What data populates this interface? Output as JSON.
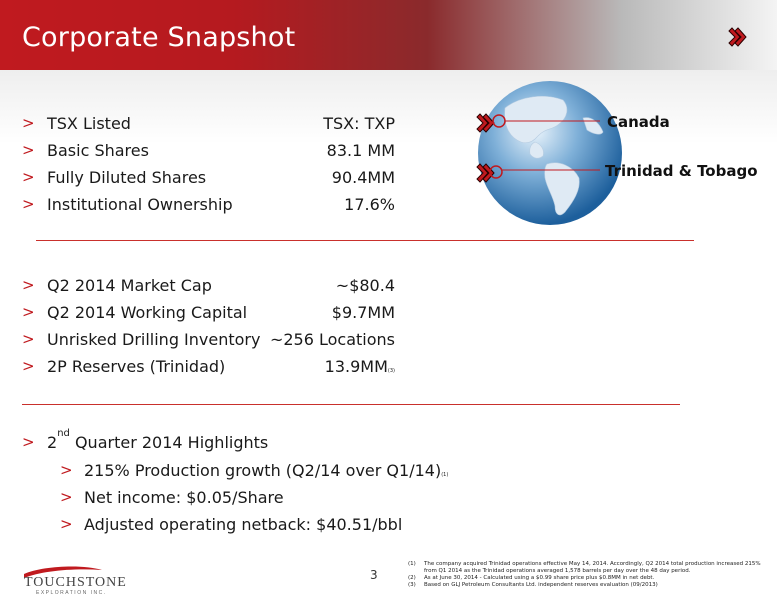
{
  "header": {
    "title": "Corporate Snapshot"
  },
  "group1": [
    {
      "label": "TSX Listed",
      "value": "TSX: TXP"
    },
    {
      "label": "Basic Shares",
      "value": "83.1 MM"
    },
    {
      "label": "Fully Diluted Shares",
      "value": "90.4MM"
    },
    {
      "label": "Institutional Ownership",
      "value": "17.6%"
    }
  ],
  "group2": [
    {
      "label": "Q2 2014 Market Cap",
      "value": "~$80.4"
    },
    {
      "label": "Q2 2014 Working Capital",
      "value": "$9.7MM"
    },
    {
      "label": "Unrisked Drilling Inventory",
      "value": "~256 Locations"
    },
    {
      "label": "2P Reserves (Trinidad)",
      "value": "13.9MM",
      "note": "(3)"
    }
  ],
  "highlights": {
    "prefix": "2",
    "sup": "nd",
    "suffix": " Quarter 2014 Highlights",
    "items": [
      {
        "text": "215% Production growth (Q2/14 over Q1/14)",
        "note": "(1)"
      },
      {
        "text": "Net income: $0.05/Share"
      },
      {
        "text": "Adjusted operating netback: $40.51/bbl"
      }
    ]
  },
  "bullet_glyph": ">",
  "map": {
    "labels": {
      "canada": "Canada",
      "trinidad": "Trinidad & Tobago"
    }
  },
  "footer": {
    "page_number": "3",
    "logo": {
      "name": "TOUCHSTONE",
      "sub": "EXPLORATION INC."
    },
    "footnotes": [
      {
        "num": "(1)",
        "text": "The company acquired Trinidad operations effective May 14, 2014.  Accordingly, Q2 2014 total production increased 215% from Q1 2014 as the Trinidad operations averaged 1,578 barrels per day over the 48 day period."
      },
      {
        "num": "(2)",
        "text": "As at June 30, 2014 - Calculated using a $0.99 share price plus $0.8MM in net debt."
      },
      {
        "num": "(3)",
        "text": "Based on GLJ Petroleum Consultants Ltd. independent reserves evaluation (09/2013)"
      }
    ]
  },
  "colors": {
    "accent": "#c01a1f",
    "header_gray": "#b9b9b9"
  }
}
